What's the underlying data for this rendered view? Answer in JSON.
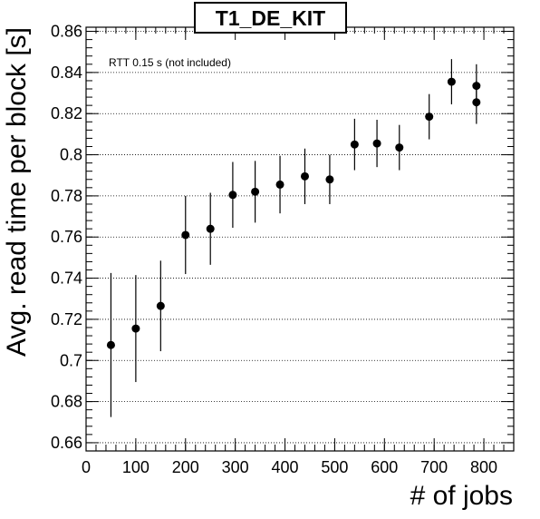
{
  "chart_data": {
    "type": "scatter",
    "title": "T1_DE_KIT",
    "annotation": "RTT 0.15 s (not included)",
    "xlabel": "# of jobs",
    "ylabel": "Avg. read time per block [s]",
    "xlim": [
      0,
      860
    ],
    "ylim": [
      0.656,
      0.862
    ],
    "xticks": [
      0,
      100,
      200,
      300,
      400,
      500,
      600,
      700,
      800
    ],
    "xtick_labels": [
      "0",
      "100",
      "200",
      "300",
      "400",
      "500",
      "600",
      "700",
      "800"
    ],
    "yticks": [
      0.66,
      0.68,
      0.7,
      0.72,
      0.74,
      0.76,
      0.78,
      0.8,
      0.82,
      0.84,
      0.86
    ],
    "ytick_labels": [
      "0.66",
      "0.68",
      "0.7",
      "0.72",
      "0.74",
      "0.76",
      "0.78",
      "0.8",
      "0.82",
      "0.84",
      "0.86"
    ],
    "grid_y": true,
    "grid_x": false,
    "series": [
      {
        "points": [
          {
            "x": 50,
            "y": 0.7075,
            "yerr": 0.035
          },
          {
            "x": 100,
            "y": 0.7155,
            "yerr": 0.026
          },
          {
            "x": 150,
            "y": 0.7265,
            "yerr": 0.022
          },
          {
            "x": 200,
            "y": 0.761,
            "yerr": 0.019
          },
          {
            "x": 250,
            "y": 0.764,
            "yerr": 0.0175
          },
          {
            "x": 295,
            "y": 0.7805,
            "yerr": 0.016
          },
          {
            "x": 340,
            "y": 0.782,
            "yerr": 0.015
          },
          {
            "x": 390,
            "y": 0.7855,
            "yerr": 0.014
          },
          {
            "x": 440,
            "y": 0.7895,
            "yerr": 0.0135
          },
          {
            "x": 490,
            "y": 0.788,
            "yerr": 0.012
          },
          {
            "x": 540,
            "y": 0.805,
            "yerr": 0.0125
          },
          {
            "x": 585,
            "y": 0.8055,
            "yerr": 0.0115
          },
          {
            "x": 630,
            "y": 0.8035,
            "yerr": 0.011
          },
          {
            "x": 690,
            "y": 0.8185,
            "yerr": 0.011
          },
          {
            "x": 735,
            "y": 0.8355,
            "yerr": 0.011
          },
          {
            "x": 785,
            "y": 0.8335,
            "yerr": 0.0105
          },
          {
            "x": 785,
            "y": 0.8255,
            "yerr": 0.0105
          }
        ]
      }
    ]
  }
}
